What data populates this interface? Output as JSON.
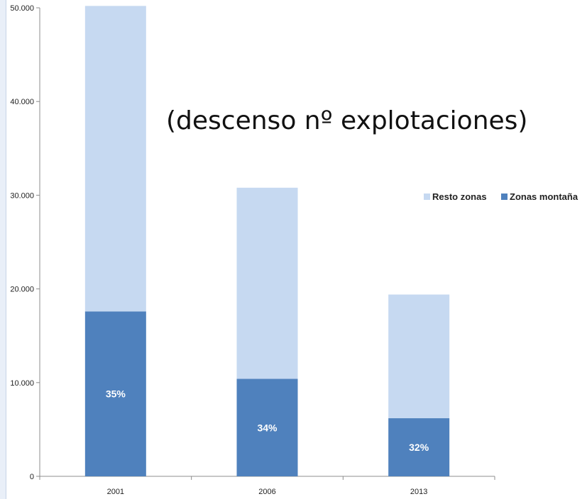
{
  "title_lines": [
    "",
    "(descenso nº explotaciones)"
  ],
  "colors": {
    "resto": "#c6d9f1",
    "montana": "#4f81bd",
    "axis": "#8c8c8c"
  },
  "legend": {
    "position": "right"
  },
  "chart_data": {
    "type": "bar",
    "stacked": true,
    "categories": [
      "2001",
      "2006",
      "2013"
    ],
    "series": [
      {
        "name": "Zonas montaña",
        "values": [
          17600,
          10400,
          6200
        ],
        "labels": [
          "35%",
          "34%",
          "32%"
        ]
      },
      {
        "name": "Resto zonas",
        "values": [
          32600,
          20400,
          13200
        ]
      }
    ],
    "ylim": [
      0,
      50000
    ],
    "yticks": [
      0,
      10000,
      20000,
      30000,
      40000,
      50000
    ],
    "ytick_labels": [
      "0",
      "10.000",
      "20.000",
      "30.000",
      "40.000",
      "50.000"
    ],
    "grid": false
  }
}
